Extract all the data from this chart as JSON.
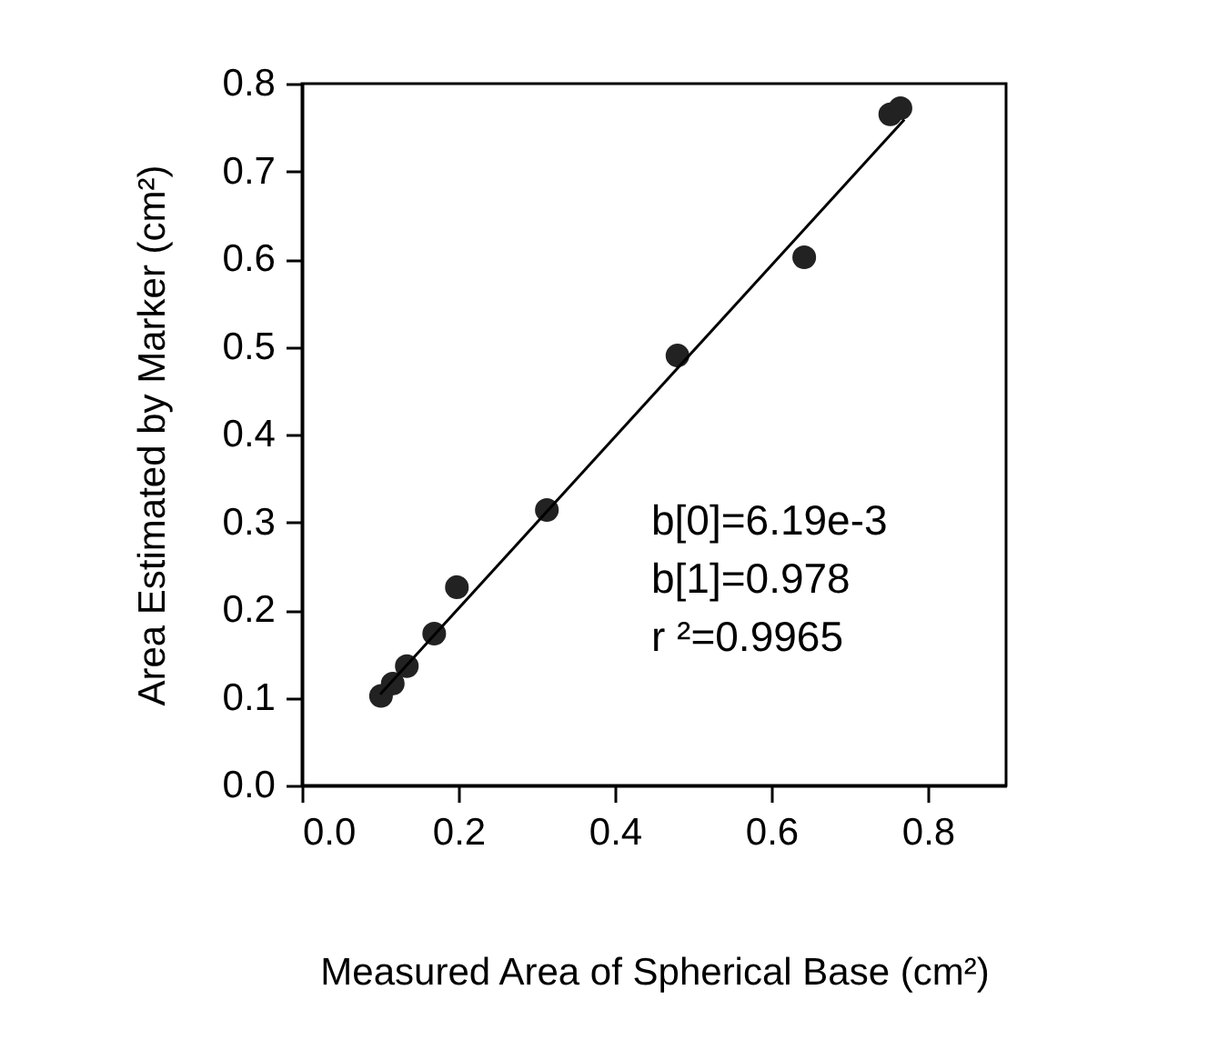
{
  "chart_data": {
    "type": "scatter",
    "xlabel": "Measured Area of Spherical Base (cm²)",
    "ylabel": "Area Estimated by Marker (cm²)",
    "annotations": [
      "b[0]=6.19e-3",
      "b[1]=0.978",
      "r ²=0.9965"
    ],
    "series": [
      {
        "color": "#222222",
        "x": [
          0.101,
          0.116,
          0.134,
          0.169,
          0.198,
          0.313,
          0.48,
          0.642,
          0.752,
          0.765
        ],
        "values": [
          0.102,
          0.116,
          0.136,
          0.173,
          0.226,
          0.314,
          0.49,
          0.602,
          0.765,
          0.772
        ]
      },
      {
        "type": "line",
        "marker": "none",
        "color": "#000000",
        "x": [
          0.1,
          0.77
        ],
        "values": [
          0.104,
          0.759
        ]
      }
    ],
    "marker": "circle",
    "xlim": [
      0,
      0.9
    ],
    "ylim": [
      0,
      0.8
    ],
    "xticks": [
      {
        "value": 0,
        "label": "0.0"
      },
      {
        "value": 0.2,
        "label": "0.2"
      },
      {
        "value": 0.4,
        "label": "0.4"
      },
      {
        "value": 0.6,
        "label": "0.6"
      },
      {
        "value": 0.8,
        "label": "0.8"
      }
    ],
    "yticks": [
      {
        "value": 0,
        "label": "0.0"
      },
      {
        "value": 0.1,
        "label": "0.1"
      },
      {
        "value": 0.2,
        "label": "0.2"
      },
      {
        "value": 0.3,
        "label": "0.3"
      },
      {
        "value": 0.4,
        "label": "0.4"
      },
      {
        "value": 0.5,
        "label": "0.5"
      },
      {
        "value": 0.6,
        "label": "0.6"
      },
      {
        "value": 0.7,
        "label": "0.7"
      },
      {
        "value": 0.8,
        "label": "0.8"
      }
    ],
    "grid": false
  }
}
